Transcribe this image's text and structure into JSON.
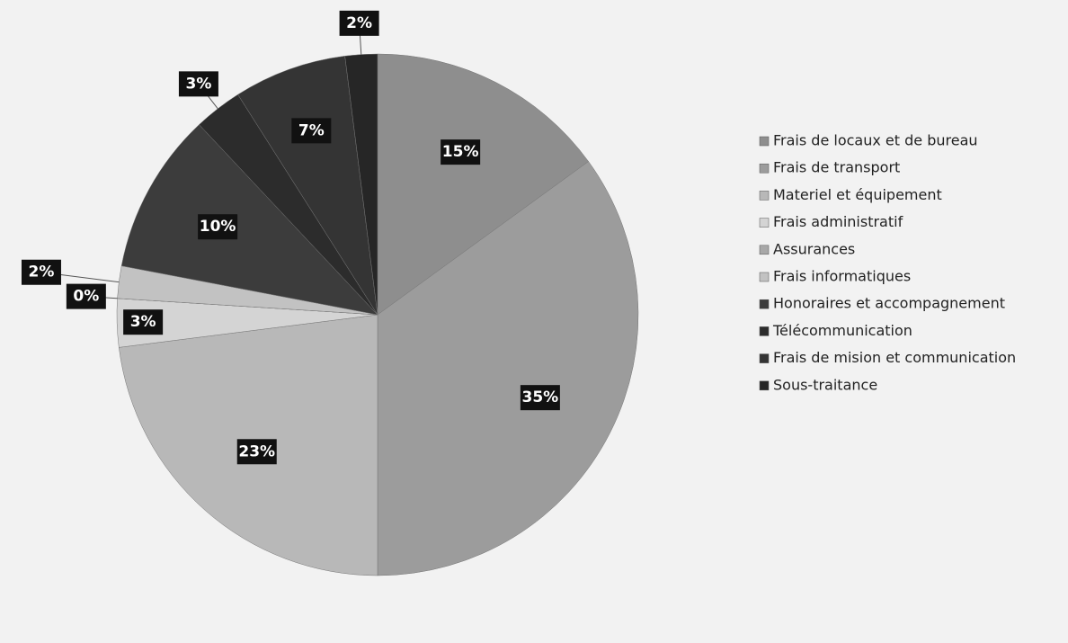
{
  "chart_data": {
    "type": "pie",
    "categories": [
      "Frais de locaux et de bureau",
      "Frais de transport",
      "Materiel et équipement",
      "Frais administratif",
      "Assurances",
      "Frais informatiques",
      "Honoraires et accompagnement",
      "Télécommunication",
      "Frais de mision et communication",
      "Sous-traitance"
    ],
    "values": [
      15,
      35,
      23,
      3,
      0,
      2,
      10,
      3,
      7,
      2
    ],
    "value_labels": [
      "15%",
      "35%",
      "23%",
      "3%",
      "0%",
      "2%",
      "10%",
      "3%",
      "7%",
      "2%"
    ],
    "colors": [
      "#8e8e8e",
      "#9c9c9c",
      "#b8b8b8",
      "#d4d4d4",
      "#a8a8a8",
      "#c2c2c2",
      "#3c3c3c",
      "#2c2c2c",
      "#343434",
      "#262626"
    ],
    "legend": "right"
  }
}
